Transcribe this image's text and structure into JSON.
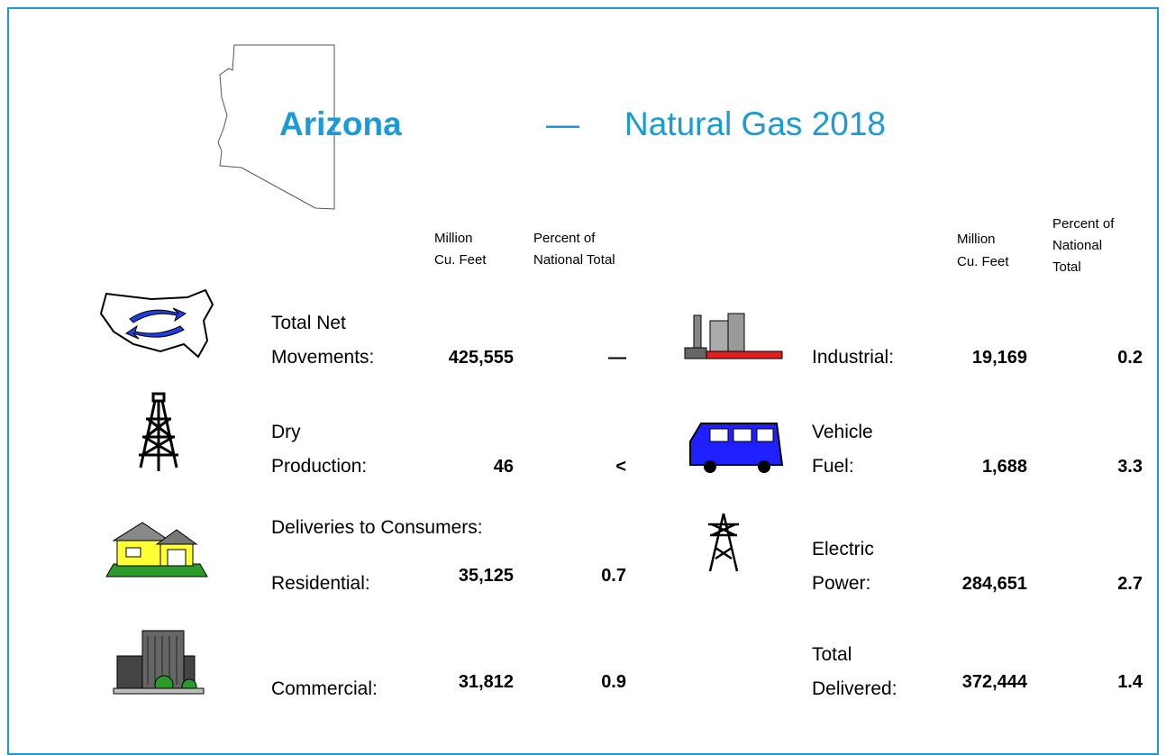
{
  "header": {
    "state": "Arizona",
    "dash": "—",
    "subject": "Natural Gas 2018"
  },
  "left_columns": {
    "volume": [
      "Million",
      "Cu. Feet"
    ],
    "percent": [
      "Percent of",
      "National Total"
    ]
  },
  "right_columns": {
    "volume": [
      "Million",
      "Cu. Feet"
    ],
    "percent": [
      "Percent of",
      "National",
      "Total"
    ]
  },
  "left_rows": [
    {
      "label": [
        "Total Net",
        "Movements:"
      ],
      "volume": "425,555",
      "percent": "—"
    },
    {
      "label": [
        "Dry",
        "Production:"
      ],
      "volume": "46",
      "percent": "<"
    },
    {
      "label": [
        "Deliveries to Consumers:"
      ]
    },
    {
      "label": [
        "Residential:"
      ],
      "volume": "35,125",
      "percent": "0.7"
    },
    {
      "label": [
        "Commercial:"
      ],
      "volume": "31,812",
      "percent": "0.9"
    }
  ],
  "right_rows": [
    {
      "label": [
        "Industrial:"
      ],
      "volume": "19,169",
      "percent": "0.2"
    },
    {
      "label": [
        "Vehicle",
        "Fuel:"
      ],
      "volume": "1,688",
      "percent": "3.3"
    },
    {
      "label": [
        "Electric",
        "Power:"
      ],
      "volume": "284,651",
      "percent": "2.7"
    },
    {
      "label": [
        "Total",
        "Delivered:"
      ],
      "volume": "372,444",
      "percent": "1.4"
    }
  ]
}
